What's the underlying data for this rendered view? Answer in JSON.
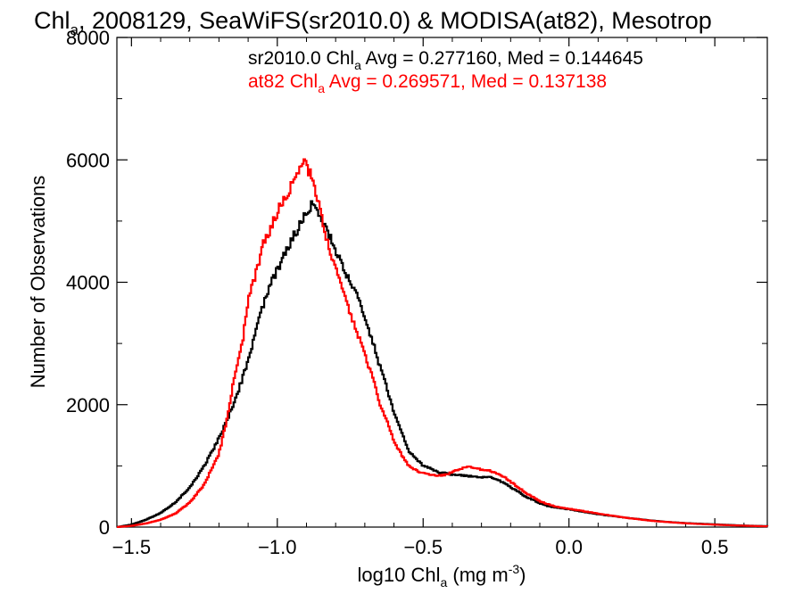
{
  "chart_data": {
    "type": "line",
    "title": {
      "lead": "Chl",
      "sub": "a",
      "rest": ", 2008129, SeaWiFS(sr2010.0) & MODISA(at82), Mesotrop"
    },
    "xlabel": {
      "lead": "log10 Chl",
      "sub": "a",
      "units_open": " (mg m",
      "sup": "-3",
      "units_close": ")"
    },
    "ylabel": "Number of Observations",
    "xlim": [
      -1.55,
      0.68
    ],
    "ylim": [
      0,
      8000
    ],
    "x_ticks": [
      {
        "value": -1.5,
        "label": "−1.5"
      },
      {
        "value": -1.0,
        "label": "−1.0"
      },
      {
        "value": -0.5,
        "label": "−0.5"
      },
      {
        "value": 0.0,
        "label": "0.0"
      },
      {
        "value": 0.5,
        "label": "0.5"
      }
    ],
    "y_ticks": [
      {
        "value": 0,
        "label": "0"
      },
      {
        "value": 2000,
        "label": "2000"
      },
      {
        "value": 4000,
        "label": "4000"
      },
      {
        "value": 6000,
        "label": "6000"
      },
      {
        "value": 8000,
        "label": "8000"
      }
    ],
    "grid": false,
    "legend_placement": "top",
    "step_width": 0.01,
    "series": [
      {
        "id": "sr2010",
        "color": "#000000",
        "legend": {
          "lead": "sr2010.0 Chl",
          "sub": "a",
          "rest": " Avg = 0.277160, Med = 0.144645"
        },
        "points": [
          [
            -1.55,
            0
          ],
          [
            -1.5,
            40
          ],
          [
            -1.45,
            120
          ],
          [
            -1.4,
            230
          ],
          [
            -1.35,
            400
          ],
          [
            -1.3,
            650
          ],
          [
            -1.25,
            1000
          ],
          [
            -1.2,
            1450
          ],
          [
            -1.15,
            2000
          ],
          [
            -1.1,
            2700
          ],
          [
            -1.07,
            3300
          ],
          [
            -1.05,
            3600
          ],
          [
            -1.02,
            4000
          ],
          [
            -1.0,
            4200
          ],
          [
            -0.97,
            4500
          ],
          [
            -0.95,
            4700
          ],
          [
            -0.92,
            4950
          ],
          [
            -0.9,
            5150
          ],
          [
            -0.88,
            5280
          ],
          [
            -0.87,
            5220
          ],
          [
            -0.85,
            5000
          ],
          [
            -0.82,
            4750
          ],
          [
            -0.8,
            4500
          ],
          [
            -0.77,
            4200
          ],
          [
            -0.75,
            4000
          ],
          [
            -0.72,
            3700
          ],
          [
            -0.7,
            3400
          ],
          [
            -0.67,
            3000
          ],
          [
            -0.65,
            2650
          ],
          [
            -0.62,
            2200
          ],
          [
            -0.6,
            1850
          ],
          [
            -0.57,
            1500
          ],
          [
            -0.55,
            1250
          ],
          [
            -0.52,
            1100
          ],
          [
            -0.5,
            1000
          ],
          [
            -0.47,
            950
          ],
          [
            -0.45,
            900
          ],
          [
            -0.42,
            880
          ],
          [
            -0.4,
            860
          ],
          [
            -0.37,
            850
          ],
          [
            -0.35,
            840
          ],
          [
            -0.32,
            820
          ],
          [
            -0.3,
            820
          ],
          [
            -0.27,
            810
          ],
          [
            -0.25,
            780
          ],
          [
            -0.22,
            720
          ],
          [
            -0.2,
            650
          ],
          [
            -0.17,
            570
          ],
          [
            -0.15,
            500
          ],
          [
            -0.12,
            440
          ],
          [
            -0.1,
            390
          ],
          [
            -0.07,
            340
          ],
          [
            -0.05,
            320
          ],
          [
            0.0,
            290
          ],
          [
            0.05,
            250
          ],
          [
            0.1,
            210
          ],
          [
            0.15,
            180
          ],
          [
            0.2,
            150
          ],
          [
            0.25,
            125
          ],
          [
            0.3,
            100
          ],
          [
            0.35,
            80
          ],
          [
            0.4,
            65
          ],
          [
            0.45,
            55
          ],
          [
            0.5,
            45
          ],
          [
            0.55,
            35
          ],
          [
            0.6,
            25
          ],
          [
            0.68,
            15
          ]
        ]
      },
      {
        "id": "at82",
        "color": "#ff0000",
        "legend": {
          "lead": "at82 Chl",
          "sub": "a",
          "rest": " Avg = 0.269571, Med = 0.137138"
        },
        "points": [
          [
            -1.55,
            0
          ],
          [
            -1.5,
            20
          ],
          [
            -1.45,
            60
          ],
          [
            -1.4,
            120
          ],
          [
            -1.35,
            220
          ],
          [
            -1.3,
            400
          ],
          [
            -1.25,
            700
          ],
          [
            -1.2,
            1200
          ],
          [
            -1.17,
            1800
          ],
          [
            -1.15,
            2400
          ],
          [
            -1.12,
            3000
          ],
          [
            -1.1,
            3700
          ],
          [
            -1.07,
            4200
          ],
          [
            -1.05,
            4600
          ],
          [
            -1.02,
            4900
          ],
          [
            -1.0,
            5150
          ],
          [
            -0.97,
            5400
          ],
          [
            -0.95,
            5600
          ],
          [
            -0.93,
            5750
          ],
          [
            -0.91,
            5950
          ],
          [
            -0.9,
            5900
          ],
          [
            -0.88,
            5700
          ],
          [
            -0.86,
            5300
          ],
          [
            -0.84,
            4900
          ],
          [
            -0.82,
            4500
          ],
          [
            -0.8,
            4200
          ],
          [
            -0.77,
            3800
          ],
          [
            -0.75,
            3500
          ],
          [
            -0.72,
            3100
          ],
          [
            -0.7,
            2800
          ],
          [
            -0.67,
            2400
          ],
          [
            -0.65,
            2000
          ],
          [
            -0.62,
            1700
          ],
          [
            -0.6,
            1400
          ],
          [
            -0.57,
            1150
          ],
          [
            -0.55,
            1000
          ],
          [
            -0.52,
            920
          ],
          [
            -0.5,
            880
          ],
          [
            -0.47,
            860
          ],
          [
            -0.45,
            840
          ],
          [
            -0.42,
            860
          ],
          [
            -0.4,
            900
          ],
          [
            -0.37,
            960
          ],
          [
            -0.35,
            980
          ],
          [
            -0.32,
            960
          ],
          [
            -0.3,
            940
          ],
          [
            -0.27,
            920
          ],
          [
            -0.25,
            880
          ],
          [
            -0.22,
            820
          ],
          [
            -0.2,
            740
          ],
          [
            -0.17,
            640
          ],
          [
            -0.15,
            560
          ],
          [
            -0.12,
            480
          ],
          [
            -0.1,
            420
          ],
          [
            -0.07,
            370
          ],
          [
            -0.05,
            340
          ],
          [
            0.0,
            300
          ],
          [
            0.05,
            260
          ],
          [
            0.1,
            220
          ],
          [
            0.15,
            185
          ],
          [
            0.2,
            150
          ],
          [
            0.25,
            120
          ],
          [
            0.3,
            95
          ],
          [
            0.35,
            78
          ],
          [
            0.4,
            62
          ],
          [
            0.45,
            50
          ],
          [
            0.5,
            40
          ],
          [
            0.55,
            30
          ],
          [
            0.6,
            22
          ],
          [
            0.68,
            12
          ]
        ]
      }
    ]
  }
}
